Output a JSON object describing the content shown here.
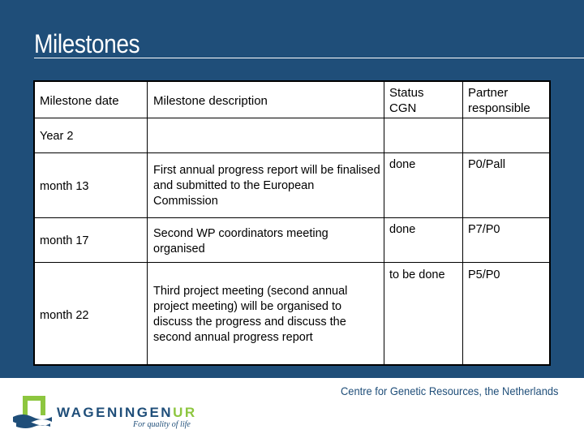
{
  "slide": {
    "title": "Milestones",
    "footer": "Centre for Genetic Resources, the Netherlands"
  },
  "table": {
    "headers": {
      "date": "Milestone date",
      "description": "Milestone description",
      "status": "Status CGN",
      "partner": "Partner responsible"
    },
    "section": "Year 2",
    "rows": [
      {
        "date": "month 13",
        "description": "First annual progress report will be finalised and submitted to the European Commission",
        "status": "done",
        "partner": "P0/Pall"
      },
      {
        "date": "month 17",
        "description": "Second WP coordinators meeting organised",
        "status": "done",
        "partner": "P7/P0"
      },
      {
        "date": "month 22",
        "description": "Third project meeting (second annual project meeting) will be organised to discuss the progress and discuss the second annual progress report",
        "status": "to be done",
        "partner": "P5/P0"
      }
    ]
  },
  "logo": {
    "wordmark_a": "WAGENINGEN",
    "wordmark_b": "UR",
    "tagline": "For quality of life"
  },
  "colors": {
    "band": "#1f4e79",
    "logo_green": "#8dc63f",
    "logo_blue": "#1f4e79"
  }
}
